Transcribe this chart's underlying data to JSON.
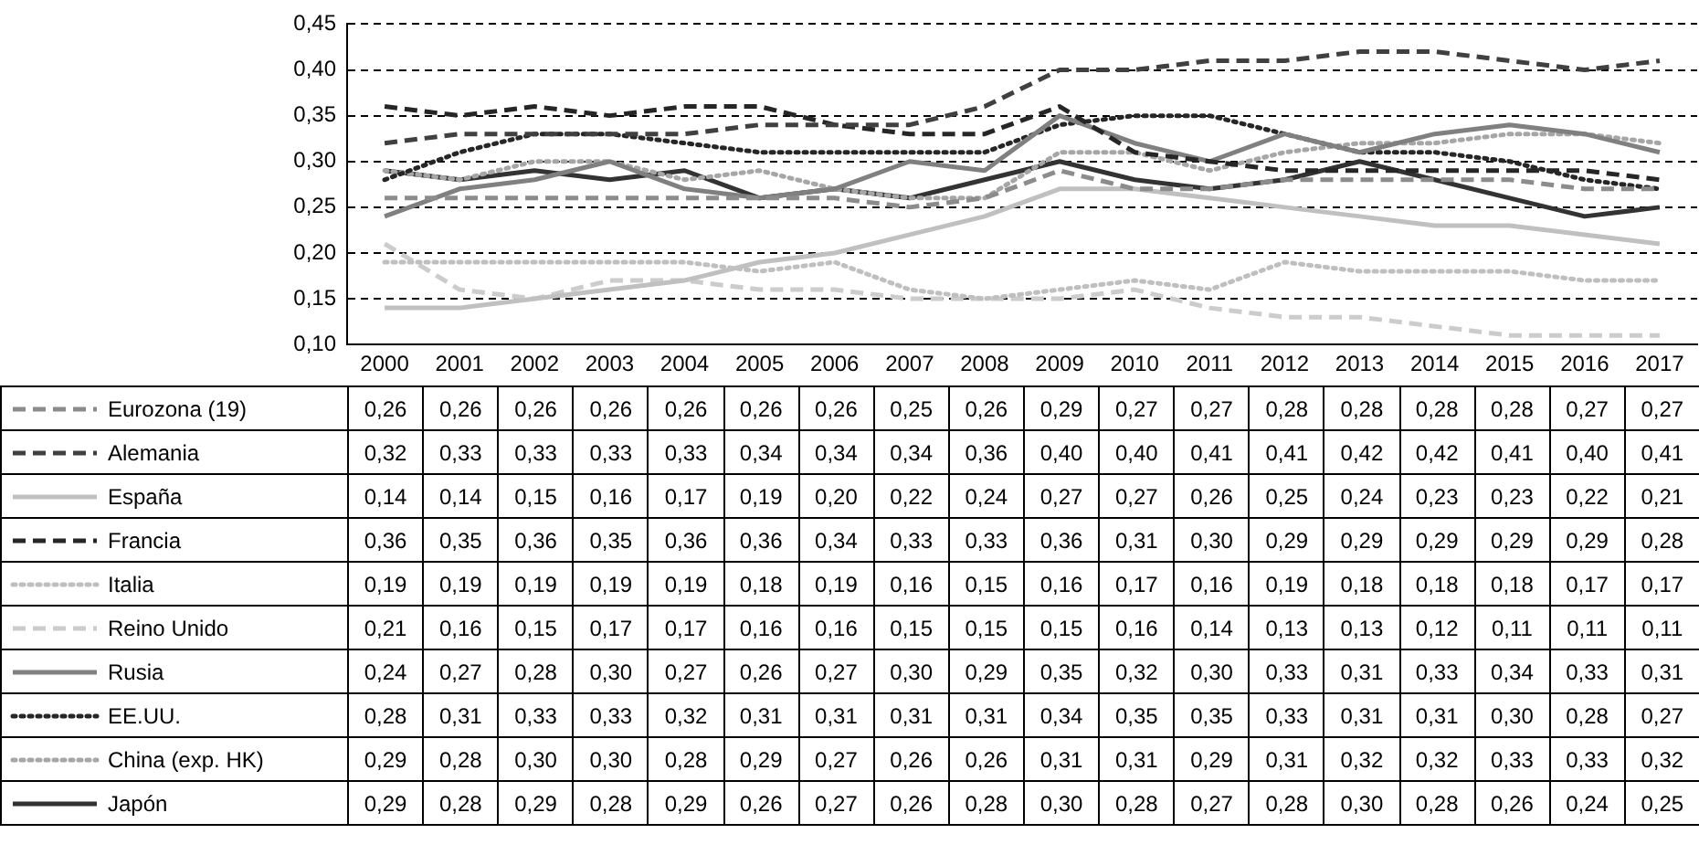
{
  "chart_data": {
    "type": "line",
    "categories": [
      "2000",
      "2001",
      "2002",
      "2003",
      "2004",
      "2005",
      "2006",
      "2007",
      "2008",
      "2009",
      "2010",
      "2011",
      "2012",
      "2013",
      "2014",
      "2015",
      "2016",
      "2017"
    ],
    "series": [
      {
        "name": "Eurozona (19)",
        "color": "#8c8c8c",
        "line_style": "dashed",
        "values": [
          0.26,
          0.26,
          0.26,
          0.26,
          0.26,
          0.26,
          0.26,
          0.25,
          0.26,
          0.29,
          0.27,
          0.27,
          0.28,
          0.28,
          0.28,
          0.28,
          0.27,
          0.27
        ],
        "value_labels": [
          "0,26",
          "0,26",
          "0,26",
          "0,26",
          "0,26",
          "0,26",
          "0,26",
          "0,25",
          "0,26",
          "0,29",
          "0,27",
          "0,27",
          "0,28",
          "0,28",
          "0,28",
          "0,28",
          "0,27",
          "0,27"
        ]
      },
      {
        "name": "Alemania",
        "color": "#404040",
        "line_style": "dashed",
        "values": [
          0.32,
          0.33,
          0.33,
          0.33,
          0.33,
          0.34,
          0.34,
          0.34,
          0.36,
          0.4,
          0.4,
          0.41,
          0.41,
          0.42,
          0.42,
          0.41,
          0.4,
          0.41
        ],
        "value_labels": [
          "0,32",
          "0,33",
          "0,33",
          "0,33",
          "0,33",
          "0,34",
          "0,34",
          "0,34",
          "0,36",
          "0,40",
          "0,40",
          "0,41",
          "0,41",
          "0,42",
          "0,42",
          "0,41",
          "0,40",
          "0,41"
        ]
      },
      {
        "name": "España",
        "color": "#c0c0c0",
        "line_style": "solid",
        "values": [
          0.14,
          0.14,
          0.15,
          0.16,
          0.17,
          0.19,
          0.2,
          0.22,
          0.24,
          0.27,
          0.27,
          0.26,
          0.25,
          0.24,
          0.23,
          0.23,
          0.22,
          0.21
        ],
        "value_labels": [
          "0,14",
          "0,14",
          "0,15",
          "0,16",
          "0,17",
          "0,19",
          "0,20",
          "0,22",
          "0,24",
          "0,27",
          "0,27",
          "0,26",
          "0,25",
          "0,24",
          "0,23",
          "0,23",
          "0,22",
          "0,21"
        ]
      },
      {
        "name": "Francia",
        "color": "#262626",
        "line_style": "dashed",
        "values": [
          0.36,
          0.35,
          0.36,
          0.35,
          0.36,
          0.36,
          0.34,
          0.33,
          0.33,
          0.36,
          0.31,
          0.3,
          0.29,
          0.29,
          0.29,
          0.29,
          0.29,
          0.28
        ],
        "value_labels": [
          "0,36",
          "0,35",
          "0,36",
          "0,35",
          "0,36",
          "0,36",
          "0,34",
          "0,33",
          "0,33",
          "0,36",
          "0,31",
          "0,30",
          "0,29",
          "0,29",
          "0,29",
          "0,29",
          "0,29",
          "0,28"
        ]
      },
      {
        "name": "Italia",
        "color": "#bfbfbf",
        "line_style": "dotted",
        "values": [
          0.19,
          0.19,
          0.19,
          0.19,
          0.19,
          0.18,
          0.19,
          0.16,
          0.15,
          0.16,
          0.17,
          0.16,
          0.19,
          0.18,
          0.18,
          0.18,
          0.17,
          0.17
        ],
        "value_labels": [
          "0,19",
          "0,19",
          "0,19",
          "0,19",
          "0,19",
          "0,18",
          "0,19",
          "0,16",
          "0,15",
          "0,16",
          "0,17",
          "0,16",
          "0,19",
          "0,18",
          "0,18",
          "0,18",
          "0,17",
          "0,17"
        ]
      },
      {
        "name": "Reino Unido",
        "color": "#cccccc",
        "line_style": "dashed",
        "values": [
          0.21,
          0.16,
          0.15,
          0.17,
          0.17,
          0.16,
          0.16,
          0.15,
          0.15,
          0.15,
          0.16,
          0.14,
          0.13,
          0.13,
          0.12,
          0.11,
          0.11,
          0.11
        ],
        "value_labels": [
          "0,21",
          "0,16",
          "0,15",
          "0,17",
          "0,17",
          "0,16",
          "0,16",
          "0,15",
          "0,15",
          "0,15",
          "0,16",
          "0,14",
          "0,13",
          "0,13",
          "0,12",
          "0,11",
          "0,11",
          "0,11"
        ]
      },
      {
        "name": "Rusia",
        "color": "#808080",
        "line_style": "solid",
        "values": [
          0.24,
          0.27,
          0.28,
          0.3,
          0.27,
          0.26,
          0.27,
          0.3,
          0.29,
          0.35,
          0.32,
          0.3,
          0.33,
          0.31,
          0.33,
          0.34,
          0.33,
          0.31
        ],
        "value_labels": [
          "0,24",
          "0,27",
          "0,28",
          "0,30",
          "0,27",
          "0,26",
          "0,27",
          "0,30",
          "0,29",
          "0,35",
          "0,32",
          "0,30",
          "0,33",
          "0,31",
          "0,33",
          "0,34",
          "0,33",
          "0,31"
        ]
      },
      {
        "name": "EE.UU.",
        "color": "#262626",
        "line_style": "dotted",
        "values": [
          0.28,
          0.31,
          0.33,
          0.33,
          0.32,
          0.31,
          0.31,
          0.31,
          0.31,
          0.34,
          0.35,
          0.35,
          0.33,
          0.31,
          0.31,
          0.3,
          0.28,
          0.27
        ],
        "value_labels": [
          "0,28",
          "0,31",
          "0,33",
          "0,33",
          "0,32",
          "0,31",
          "0,31",
          "0,31",
          "0,31",
          "0,34",
          "0,35",
          "0,35",
          "0,33",
          "0,31",
          "0,31",
          "0,30",
          "0,28",
          "0,27"
        ]
      },
      {
        "name": "China (exp. HK)",
        "color": "#a6a6a6",
        "line_style": "dotted",
        "values": [
          0.29,
          0.28,
          0.3,
          0.3,
          0.28,
          0.29,
          0.27,
          0.26,
          0.26,
          0.31,
          0.31,
          0.29,
          0.31,
          0.32,
          0.32,
          0.33,
          0.33,
          0.32
        ],
        "value_labels": [
          "0,29",
          "0,28",
          "0,30",
          "0,30",
          "0,28",
          "0,29",
          "0,27",
          "0,26",
          "0,26",
          "0,31",
          "0,31",
          "0,29",
          "0,31",
          "0,32",
          "0,32",
          "0,33",
          "0,33",
          "0,32"
        ]
      },
      {
        "name": "Japón",
        "color": "#333333",
        "line_style": "solid",
        "values": [
          0.29,
          0.28,
          0.29,
          0.28,
          0.29,
          0.26,
          0.27,
          0.26,
          0.28,
          0.3,
          0.28,
          0.27,
          0.28,
          0.3,
          0.28,
          0.26,
          0.24,
          0.25
        ],
        "value_labels": [
          "0,29",
          "0,28",
          "0,29",
          "0,28",
          "0,29",
          "0,26",
          "0,27",
          "0,26",
          "0,28",
          "0,30",
          "0,28",
          "0,27",
          "0,28",
          "0,30",
          "0,28",
          "0,26",
          "0,24",
          "0,25"
        ]
      }
    ],
    "ylim": [
      0.1,
      0.45
    ],
    "yticks": [
      {
        "value": 0.1,
        "label": "0,10"
      },
      {
        "value": 0.15,
        "label": "0,15"
      },
      {
        "value": 0.2,
        "label": "0,20"
      },
      {
        "value": 0.25,
        "label": "0,25"
      },
      {
        "value": 0.3,
        "label": "0,30"
      },
      {
        "value": 0.35,
        "label": "0,35"
      },
      {
        "value": 0.4,
        "label": "0,40"
      },
      {
        "value": 0.45,
        "label": "0,45"
      }
    ],
    "grid": "y",
    "legend": "bottom",
    "marker": "none"
  }
}
